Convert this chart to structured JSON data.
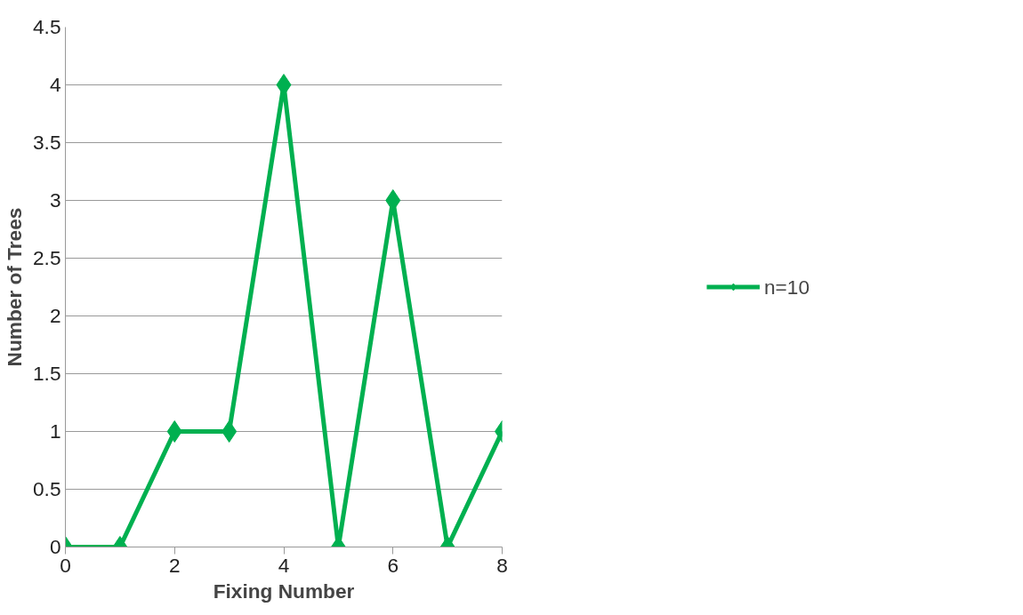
{
  "chart_data": {
    "type": "line",
    "xlabel": "Fixing Number",
    "ylabel": "Number of Trees",
    "x": [
      0,
      1,
      2,
      3,
      4,
      5,
      6,
      7,
      8
    ],
    "series": [
      {
        "name": "n=10",
        "color": "#00b050",
        "values": [
          0,
          0,
          1,
          1,
          4,
          0,
          3,
          0,
          1
        ]
      }
    ],
    "xlim": [
      0,
      8
    ],
    "xticks": [
      0,
      2,
      4,
      6,
      8
    ],
    "ylim": [
      0,
      4.5
    ],
    "yticks": [
      0,
      0.5,
      1,
      1.5,
      2,
      2.5,
      3,
      3.5,
      4,
      4.5
    ],
    "grid": "y",
    "legend": "right",
    "marker": "diamond",
    "line_style": "solid"
  }
}
